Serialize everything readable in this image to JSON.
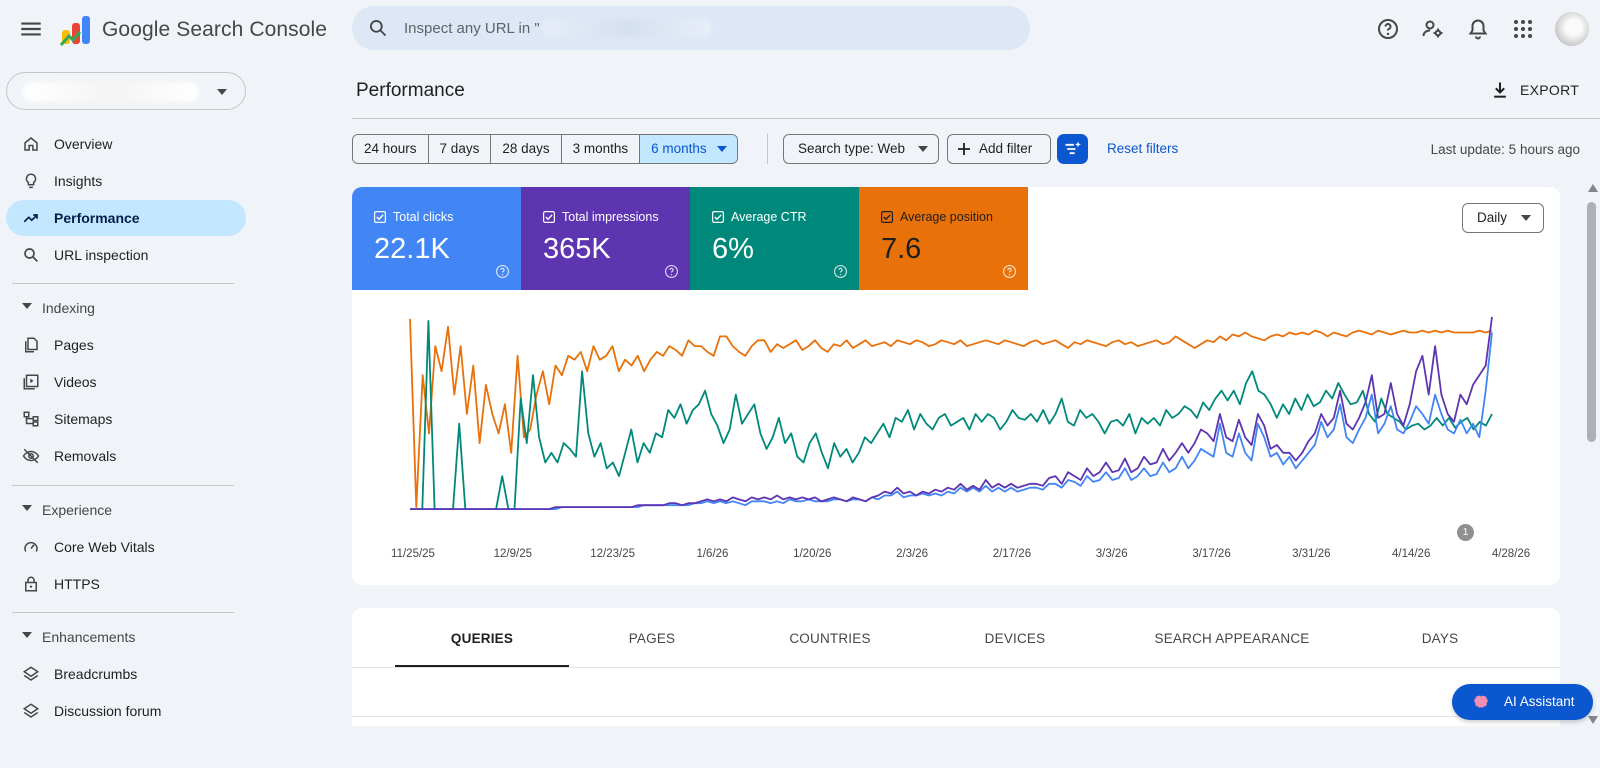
{
  "header": {
    "app_title": "Google Search Console",
    "search_placeholder": "Inspect any URL in \"",
    "icons": [
      "menu-icon",
      "help-icon",
      "manage-users-icon",
      "notifications-icon",
      "apps-grid-icon"
    ]
  },
  "sidebar": {
    "property_selector": "",
    "items_top": [
      {
        "label": "Overview",
        "icon": "home-icon"
      },
      {
        "label": "Insights",
        "icon": "lightbulb-icon"
      },
      {
        "label": "Performance",
        "icon": "trending-up-icon",
        "active": true
      },
      {
        "label": "URL inspection",
        "icon": "search-icon"
      }
    ],
    "indexing": {
      "title": "Indexing",
      "items": [
        {
          "label": "Pages",
          "icon": "pages-icon"
        },
        {
          "label": "Videos",
          "icon": "video-icon"
        },
        {
          "label": "Sitemaps",
          "icon": "sitemap-icon"
        },
        {
          "label": "Removals",
          "icon": "eye-off-icon"
        }
      ]
    },
    "experience": {
      "title": "Experience",
      "items": [
        {
          "label": "Core Web Vitals",
          "icon": "gauge-icon"
        },
        {
          "label": "HTTPS",
          "icon": "lock-icon"
        }
      ]
    },
    "enhancements": {
      "title": "Enhancements",
      "items": [
        {
          "label": "Breadcrumbs",
          "icon": "layers-icon"
        },
        {
          "label": "Discussion forum",
          "icon": "layers-icon"
        }
      ]
    }
  },
  "main": {
    "title": "Performance",
    "export_label": "EXPORT",
    "date_ranges": [
      "24 hours",
      "7 days",
      "28 days",
      "3 months",
      "6 months"
    ],
    "selected_range": "6 months",
    "search_type": "Search type: Web",
    "add_filter": "Add filter",
    "reset_filters": "Reset filters",
    "last_update": "Last update: 5 hours ago",
    "granularity": "Daily",
    "annotation_badge": "1"
  },
  "metrics": [
    {
      "label": "Total clicks",
      "value": "22.1K",
      "color": "#4285f4",
      "checked": true
    },
    {
      "label": "Total impressions",
      "value": "365K",
      "color": "#5e35b1",
      "checked": true
    },
    {
      "label": "Average CTR",
      "value": "6%",
      "color": "#00897b",
      "checked": true
    },
    {
      "label": "Average position",
      "value": "7.6",
      "color": "#e8710a",
      "checked": true
    }
  ],
  "chart_data": {
    "type": "line",
    "x_tick_labels": [
      "11/25/25",
      "12/9/25",
      "12/23/25",
      "1/6/26",
      "1/20/26",
      "2/3/26",
      "2/17/26",
      "3/3/26",
      "3/17/26",
      "3/31/26",
      "4/14/26",
      "4/28/26"
    ],
    "x_range": [
      "11/24/25",
      "4/29/26"
    ],
    "normalized_y_range": [
      0,
      1
    ],
    "y_axis_visible": false,
    "grid": false,
    "legend": "metric cards above chart",
    "series": [
      {
        "name": "Total clicks",
        "color": "#4285f4",
        "values": [
          0.01,
          0.01,
          0.01,
          0.01,
          0.01,
          0.01,
          0.01,
          0.01,
          0.01,
          0.01,
          0.01,
          0.01,
          0.01,
          0.01,
          0.01,
          0.01,
          0.01,
          0.01,
          0.01,
          0.01,
          0.01,
          0.01,
          0.01,
          0.01,
          0.02,
          0.02,
          0.02,
          0.02,
          0.02,
          0.02,
          0.02,
          0.02,
          0.02,
          0.02,
          0.02,
          0.02,
          0.02,
          0.03,
          0.03,
          0.03,
          0.03,
          0.03,
          0.03,
          0.03,
          0.03,
          0.04,
          0.04,
          0.05,
          0.04,
          0.05,
          0.04,
          0.05,
          0.04,
          0.03,
          0.05,
          0.05,
          0.05,
          0.04,
          0.05,
          0.04,
          0.06,
          0.05,
          0.05,
          0.06,
          0.05,
          0.05,
          0.05,
          0.06,
          0.06,
          0.05,
          0.06,
          0.06,
          0.05,
          0.07,
          0.06,
          0.08,
          0.08,
          0.1,
          0.07,
          0.08,
          0.08,
          0.09,
          0.08,
          0.09,
          0.08,
          0.1,
          0.09,
          0.12,
          0.1,
          0.12,
          0.1,
          0.13,
          0.1,
          0.12,
          0.1,
          0.12,
          0.1,
          0.11,
          0.12,
          0.12,
          0.11,
          0.14,
          0.14,
          0.12,
          0.16,
          0.15,
          0.13,
          0.18,
          0.15,
          0.16,
          0.2,
          0.16,
          0.17,
          0.22,
          0.16,
          0.18,
          0.22,
          0.18,
          0.19,
          0.25,
          0.2,
          0.22,
          0.28,
          0.22,
          0.26,
          0.32,
          0.3,
          0.28,
          0.45,
          0.3,
          0.28,
          0.4,
          0.3,
          0.26,
          0.45,
          0.38,
          0.28,
          0.3,
          0.24,
          0.28,
          0.22,
          0.26,
          0.3,
          0.34,
          0.46,
          0.38,
          0.42,
          0.55,
          0.38,
          0.35,
          0.42,
          0.48,
          0.6,
          0.4,
          0.45,
          0.54,
          0.42,
          0.4,
          0.46,
          0.54,
          0.5,
          0.45,
          0.6,
          0.5,
          0.42,
          0.4,
          0.47,
          0.4,
          0.45,
          0.38,
          0.62,
          0.92
        ]
      },
      {
        "name": "Total impressions",
        "color": "#5e35b1",
        "values": [
          0.01,
          0.01,
          0.01,
          0.01,
          0.01,
          0.01,
          0.01,
          0.01,
          0.01,
          0.01,
          0.01,
          0.01,
          0.01,
          0.01,
          0.01,
          0.01,
          0.01,
          0.01,
          0.01,
          0.01,
          0.01,
          0.01,
          0.01,
          0.02,
          0.02,
          0.02,
          0.02,
          0.02,
          0.02,
          0.02,
          0.02,
          0.02,
          0.02,
          0.02,
          0.02,
          0.02,
          0.03,
          0.03,
          0.03,
          0.03,
          0.03,
          0.04,
          0.04,
          0.03,
          0.04,
          0.04,
          0.05,
          0.06,
          0.05,
          0.06,
          0.05,
          0.07,
          0.06,
          0.05,
          0.07,
          0.06,
          0.07,
          0.06,
          0.08,
          0.06,
          0.07,
          0.06,
          0.07,
          0.06,
          0.07,
          0.05,
          0.06,
          0.07,
          0.06,
          0.05,
          0.07,
          0.06,
          0.05,
          0.07,
          0.08,
          0.1,
          0.09,
          0.12,
          0.09,
          0.1,
          0.08,
          0.1,
          0.09,
          0.11,
          0.1,
          0.12,
          0.11,
          0.14,
          0.11,
          0.13,
          0.11,
          0.16,
          0.12,
          0.14,
          0.12,
          0.14,
          0.12,
          0.13,
          0.14,
          0.14,
          0.13,
          0.17,
          0.18,
          0.14,
          0.2,
          0.18,
          0.16,
          0.22,
          0.18,
          0.2,
          0.25,
          0.2,
          0.21,
          0.27,
          0.2,
          0.22,
          0.28,
          0.24,
          0.25,
          0.32,
          0.26,
          0.3,
          0.35,
          0.3,
          0.35,
          0.42,
          0.4,
          0.36,
          0.5,
          0.38,
          0.36,
          0.47,
          0.38,
          0.34,
          0.5,
          0.44,
          0.32,
          0.34,
          0.3,
          0.3,
          0.26,
          0.3,
          0.36,
          0.4,
          0.5,
          0.44,
          0.48,
          0.62,
          0.45,
          0.42,
          0.48,
          0.56,
          0.7,
          0.48,
          0.5,
          0.66,
          0.5,
          0.44,
          0.55,
          0.72,
          0.8,
          0.6,
          0.85,
          0.6,
          0.5,
          0.46,
          0.6,
          0.55,
          0.65,
          0.7,
          0.75,
          1.0
        ]
      },
      {
        "name": "Average CTR",
        "color": "#00897b",
        "values": [
          0.01,
          0.01,
          0.01,
          0.98,
          0.01,
          0.01,
          0.01,
          0.01,
          0.45,
          0.01,
          0.01,
          0.01,
          0.01,
          0.01,
          0.01,
          0.18,
          0.01,
          0.01,
          0.58,
          0.35,
          0.7,
          0.38,
          0.25,
          0.3,
          0.25,
          0.35,
          0.32,
          0.28,
          0.72,
          0.4,
          0.28,
          0.35,
          0.22,
          0.25,
          0.18,
          0.3,
          0.42,
          0.25,
          0.35,
          0.3,
          0.4,
          0.38,
          0.52,
          0.48,
          0.55,
          0.45,
          0.52,
          0.55,
          0.62,
          0.5,
          0.44,
          0.35,
          0.42,
          0.6,
          0.45,
          0.5,
          0.55,
          0.4,
          0.32,
          0.38,
          0.48,
          0.35,
          0.4,
          0.28,
          0.25,
          0.35,
          0.4,
          0.3,
          0.22,
          0.35,
          0.28,
          0.32,
          0.25,
          0.3,
          0.38,
          0.35,
          0.4,
          0.45,
          0.38,
          0.48,
          0.46,
          0.52,
          0.42,
          0.5,
          0.45,
          0.42,
          0.48,
          0.5,
          0.44,
          0.46,
          0.48,
          0.42,
          0.5,
          0.46,
          0.5,
          0.48,
          0.42,
          0.46,
          0.52,
          0.48,
          0.47,
          0.5,
          0.46,
          0.52,
          0.45,
          0.5,
          0.58,
          0.46,
          0.44,
          0.52,
          0.48,
          0.5,
          0.46,
          0.4,
          0.46,
          0.47,
          0.44,
          0.5,
          0.4,
          0.48,
          0.45,
          0.48,
          0.44,
          0.52,
          0.48,
          0.5,
          0.54,
          0.52,
          0.48,
          0.56,
          0.52,
          0.58,
          0.62,
          0.57,
          0.62,
          0.55,
          0.66,
          0.72,
          0.62,
          0.6,
          0.55,
          0.48,
          0.55,
          0.5,
          0.58,
          0.52,
          0.6,
          0.54,
          0.56,
          0.62,
          0.58,
          0.66,
          0.6,
          0.55,
          0.56,
          0.62,
          0.5,
          0.46,
          0.58,
          0.5,
          0.48,
          0.46,
          0.42,
          0.44,
          0.45,
          0.42,
          0.44,
          0.48,
          0.44,
          0.48,
          0.43,
          0.46,
          0.48,
          0.42,
          0.46,
          0.44,
          0.5
        ]
      },
      {
        "name": "Average position",
        "color": "#e8710a",
        "values": [
          0.99,
          0.02,
          0.7,
          0.4,
          0.85,
          0.72,
          0.95,
          0.6,
          0.85,
          0.5,
          0.75,
          0.35,
          0.65,
          0.5,
          0.4,
          0.55,
          0.3,
          0.8,
          0.38,
          0.42,
          0.6,
          0.72,
          0.55,
          0.75,
          0.7,
          0.8,
          0.78,
          0.82,
          0.72,
          0.85,
          0.78,
          0.8,
          0.85,
          0.72,
          0.78,
          0.75,
          0.8,
          0.72,
          0.78,
          0.82,
          0.8,
          0.85,
          0.83,
          0.8,
          0.88,
          0.85,
          0.85,
          0.82,
          0.8,
          0.9,
          0.9,
          0.85,
          0.82,
          0.8,
          0.85,
          0.88,
          0.88,
          0.82,
          0.86,
          0.84,
          0.86,
          0.88,
          0.83,
          0.85,
          0.88,
          0.84,
          0.82,
          0.86,
          0.85,
          0.88,
          0.84,
          0.86,
          0.88,
          0.85,
          0.86,
          0.87,
          0.85,
          0.88,
          0.87,
          0.86,
          0.88,
          0.87,
          0.85,
          0.86,
          0.88,
          0.87,
          0.86,
          0.88,
          0.85,
          0.86,
          0.87,
          0.88,
          0.87,
          0.86,
          0.88,
          0.87,
          0.86,
          0.85,
          0.87,
          0.88,
          0.86,
          0.87,
          0.88,
          0.86,
          0.84,
          0.87,
          0.86,
          0.88,
          0.87,
          0.86,
          0.85,
          0.87,
          0.88,
          0.86,
          0.87,
          0.85,
          0.86,
          0.87,
          0.88,
          0.86,
          0.87,
          0.9,
          0.88,
          0.86,
          0.84,
          0.86,
          0.88,
          0.87,
          0.9,
          0.88,
          0.91,
          0.9,
          0.92,
          0.9,
          0.89,
          0.88,
          0.9,
          0.91,
          0.9,
          0.92,
          0.91,
          0.92,
          0.91,
          0.93,
          0.92,
          0.9,
          0.92,
          0.91,
          0.9,
          0.92,
          0.93,
          0.92,
          0.91,
          0.93,
          0.92,
          0.91,
          0.92,
          0.93,
          0.92,
          0.92,
          0.93,
          0.92,
          0.93,
          0.92,
          0.93,
          0.92,
          0.92,
          0.92,
          0.92,
          0.93,
          0.92,
          0.93
        ]
      }
    ]
  },
  "table_tabs": [
    {
      "label": "QUERIES",
      "active": true
    },
    {
      "label": "PAGES"
    },
    {
      "label": "COUNTRIES"
    },
    {
      "label": "DEVICES"
    },
    {
      "label": "SEARCH APPEARANCE"
    },
    {
      "label": "DAYS"
    }
  ],
  "ai_assistant": {
    "label": "AI Assistant"
  }
}
